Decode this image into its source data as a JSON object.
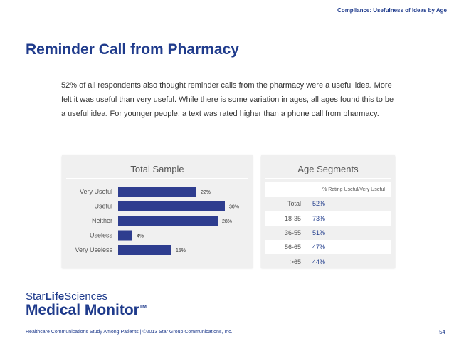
{
  "header": {
    "tag": "Compliance: Usefulness of Ideas by Age"
  },
  "title": "Reminder Call from Pharmacy",
  "body": "52% of all respondents also thought reminder calls from the pharmacy were a useful idea. More felt it was useful than very useful. While there is some variation in ages, all ages found this to be a useful idea. For younger people, a text was rated higher than a phone call from pharmacy.",
  "colors": {
    "brand": "#1f3b8c",
    "bar": "#2e3d8f"
  },
  "chart_data": [
    {
      "type": "bar",
      "title": "Total Sample",
      "orientation": "horizontal",
      "categories": [
        "Very Useful",
        "Useful",
        "Neither",
        "Useless",
        "Very Useless"
      ],
      "values": [
        22,
        30,
        28,
        4,
        15
      ],
      "value_labels": [
        "22%",
        "30%",
        "28%",
        "4%",
        "15%"
      ],
      "xlim": [
        0,
        35
      ]
    },
    {
      "type": "table",
      "title": "Age Segments",
      "column_header": "% Rating Useful/Very Useful",
      "rows": [
        {
          "label": "Total",
          "value": "52%"
        },
        {
          "label": "18-35",
          "value": "73%"
        },
        {
          "label": "36-55",
          "value": "51%"
        },
        {
          "label": "56-65",
          "value": "47%"
        },
        {
          "label": ">65",
          "value": "44%"
        }
      ]
    }
  ],
  "logo": {
    "line1_pre": "Star",
    "line1_bold": "Life",
    "line1_post": "Sciences",
    "line2": "Medical Monitor",
    "line2_mark": "TM"
  },
  "footer": {
    "text": "Healthcare Communications Study Among Patients  |  ©2013 Star Group Communications, Inc.",
    "page": "54"
  }
}
